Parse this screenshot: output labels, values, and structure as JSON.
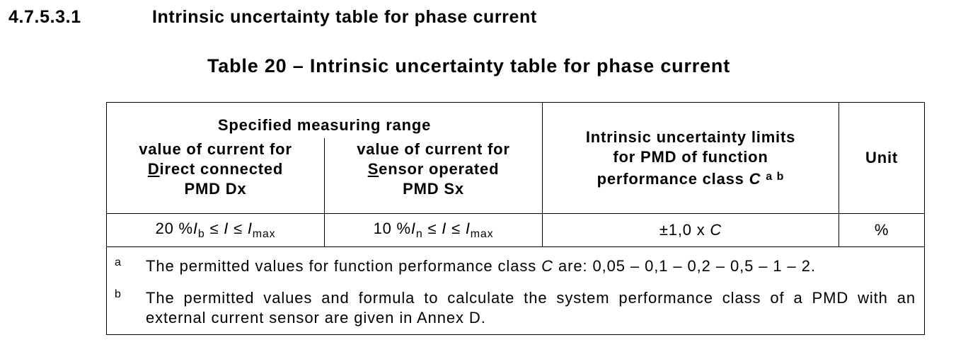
{
  "clause": {
    "number": "4.7.5.3.1",
    "title": "Intrinsic uncertainty table for phase current"
  },
  "table": {
    "caption": "Table 20 – Intrinsic uncertainty table for phase current",
    "header": {
      "group": "Specified measuring range",
      "col1_line1": "value of current for",
      "col1_initial": "D",
      "col1_line2_rest": "irect connected",
      "col1_line3": "PMD Dx",
      "col2_line1": "value of current for",
      "col2_initial": "S",
      "col2_line2_rest": "ensor operated",
      "col2_line3": "PMD Sx",
      "col3_line1": "Intrinsic uncertainty limits",
      "col3_line2": "for PMD of function",
      "col3_line3": "performance class",
      "col3_symbol": "C",
      "col3_footnotes": "a b",
      "col4": "Unit"
    },
    "row": {
      "col1": {
        "prefix": "20 %",
        "sym": "I",
        "sub1": "b",
        "mid": " ≤ ",
        "var": "I",
        "mid2": " ≤ ",
        "sym2": "I",
        "sub2": "max"
      },
      "col2": {
        "prefix": "10 %",
        "sym": "I",
        "sub1": "n",
        "mid": " ≤ ",
        "var": "I",
        "mid2": " ≤ ",
        "sym2": "I",
        "sub2": "max"
      },
      "col3": {
        "prefix": "±1,0 x ",
        "sym": "C"
      },
      "col4": "%"
    },
    "footnotes": {
      "a_mark": "a",
      "a_before": "The permitted values for function performance class ",
      "a_symbol": "C",
      "a_after": " are: 0,05 – 0,1 – 0,2 – 0,5 – 1 – 2.",
      "b_mark": "b",
      "b_text": "The permitted values and formula to calculate the system performance class of a PMD with an external current sensor are given in Annex D."
    }
  }
}
